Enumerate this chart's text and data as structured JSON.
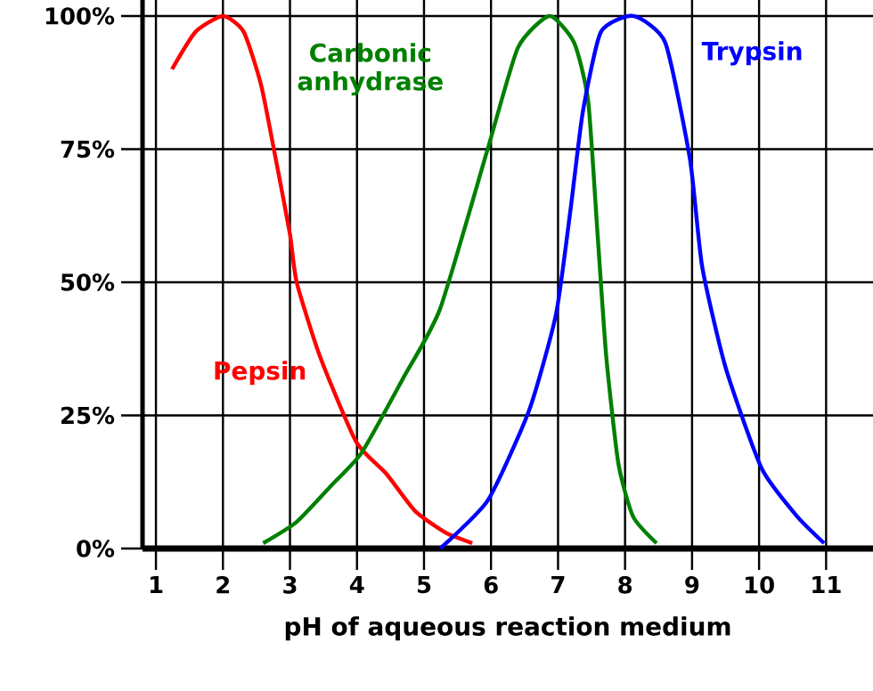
{
  "chart_data": {
    "type": "line",
    "xlabel": "pH of aqueous reaction medium",
    "xlim": [
      0.8,
      11.7
    ],
    "ylim": [
      0,
      103
    ],
    "xticks": [
      1,
      2,
      3,
      4,
      5,
      6,
      7,
      8,
      9,
      10,
      11
    ],
    "yticks": [
      {
        "value": 0,
        "label": "0%"
      },
      {
        "value": 25,
        "label": "25%"
      },
      {
        "value": 50,
        "label": "50%"
      },
      {
        "value": 75,
        "label": "75%"
      },
      {
        "value": 100,
        "label": "100%"
      }
    ],
    "grid": true,
    "legend": false,
    "marker": "none",
    "line_style": "solid",
    "series": [
      {
        "name": "Pepsin",
        "color": "#ff0000",
        "x": [
          1.24,
          1.59,
          2.0,
          2.31,
          2.57,
          2.79,
          3.0,
          3.1,
          3.45,
          3.99,
          4.44,
          4.87,
          5.32,
          5.72
        ],
        "values": [
          90,
          97,
          100,
          97,
          87,
          73,
          59,
          50,
          36,
          20,
          14,
          7,
          3,
          1
        ]
      },
      {
        "name": "Carbonic anhydrase",
        "color": "#008000",
        "x": [
          2.6,
          3.1,
          3.63,
          4.07,
          4.69,
          5.24,
          5.95,
          6.4,
          6.87,
          7.24,
          7.45,
          7.59,
          7.72,
          7.9,
          8.12,
          8.47
        ],
        "values": [
          1,
          5,
          12,
          18,
          32,
          45,
          75,
          94,
          100,
          95,
          84,
          59,
          36,
          16,
          6,
          1
        ]
      },
      {
        "name": "Trypsin",
        "color": "#0000ff",
        "x": [
          5.24,
          5.95,
          6.57,
          6.97,
          7.19,
          7.37,
          7.64,
          8.12,
          8.6,
          8.97,
          9.15,
          9.5,
          10.04,
          10.57,
          10.97
        ],
        "values": [
          0,
          9,
          26,
          44,
          64,
          82,
          97,
          100,
          95,
          73,
          53,
          34,
          15,
          6,
          1
        ]
      }
    ]
  }
}
